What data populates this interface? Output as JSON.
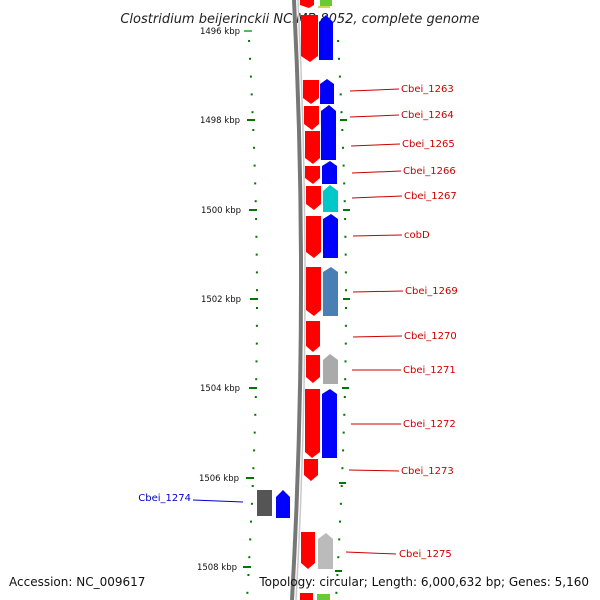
{
  "title": "Clostridium beijerinckii NCIMB 8052, complete genome",
  "footer": {
    "accession": "Accession: NC_009617",
    "stats": "Topology: circular; Length: 6,000,632 bp; Genes: 5,160"
  },
  "colors": {
    "label_red": "#cc0000",
    "label_blue": "#0000cc",
    "forward_strand": "#ff0000",
    "reverse_strand": "#0000ff",
    "cyan_gene": "#00c8c8",
    "steel_gene": "#4a7fb5",
    "gray_gene": "#aaaaaa",
    "dark_gene": "#555555",
    "backbone": "#888888",
    "tick": "#007700"
  },
  "ticks": [
    "1496 kbp",
    "1498 kbp",
    "1500 kbp",
    "1502 kbp",
    "1504 kbp",
    "1506 kbp",
    "1508 kbp"
  ],
  "gene_labels": [
    {
      "text": "Cbei_1263",
      "color": "red"
    },
    {
      "text": "Cbei_1264",
      "color": "red"
    },
    {
      "text": "Cbei_1265",
      "color": "red"
    },
    {
      "text": "Cbei_1266",
      "color": "red"
    },
    {
      "text": "Cbei_1267",
      "color": "red"
    },
    {
      "text": "cobD",
      "color": "red"
    },
    {
      "text": "Cbei_1269",
      "color": "red"
    },
    {
      "text": "Cbei_1270",
      "color": "red"
    },
    {
      "text": "Cbei_1271",
      "color": "red"
    },
    {
      "text": "Cbei_1272",
      "color": "red"
    },
    {
      "text": "Cbei_1273",
      "color": "red"
    },
    {
      "text": "Cbei_1274",
      "color": "blue"
    },
    {
      "text": "Cbei_1275",
      "color": "red"
    }
  ]
}
